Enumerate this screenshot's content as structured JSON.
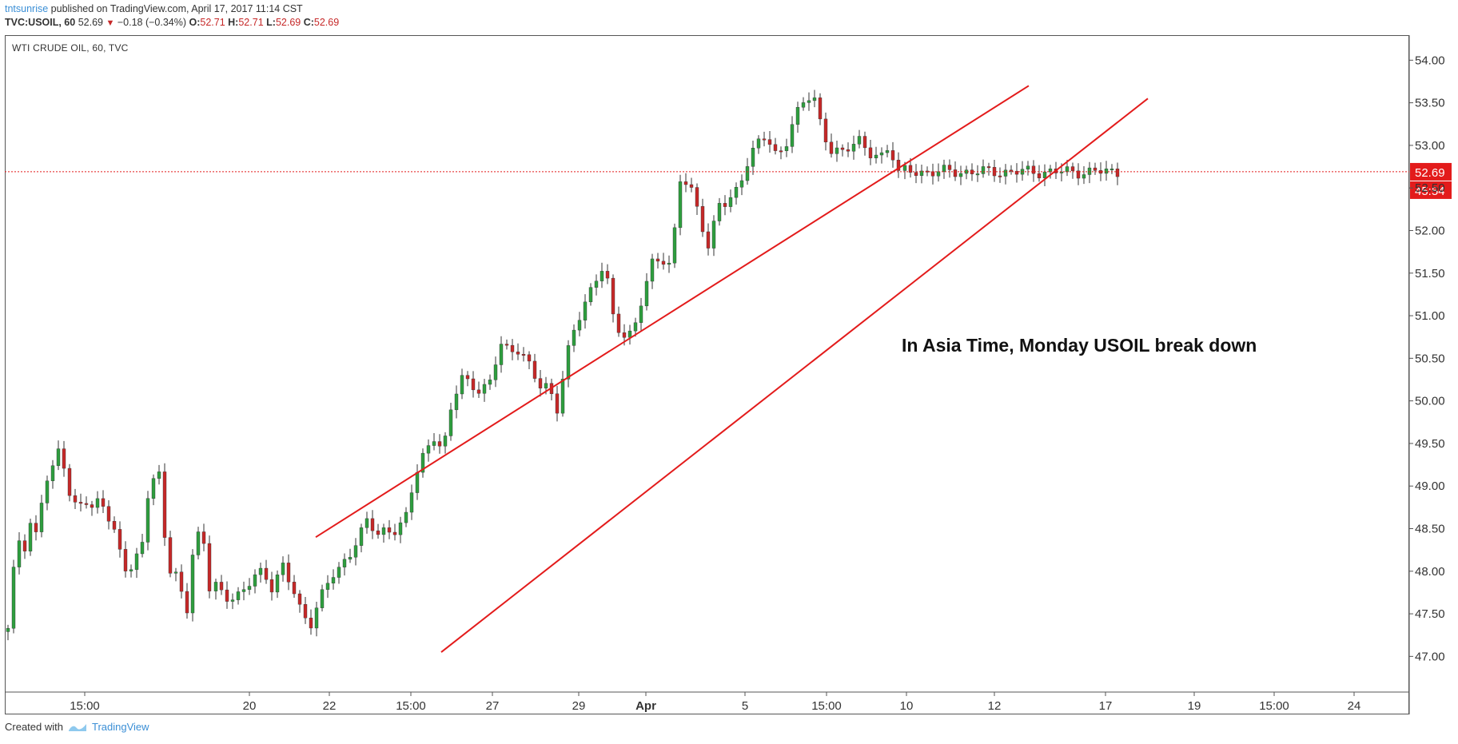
{
  "header": {
    "user": "tntsunrise",
    "published": " published on TradingView.com, April 17, 2017 11:14 CST",
    "symbol": "TVC:USOIL, 60",
    "last": "52.69",
    "arrow": "▼",
    "change": "−0.18 (−0.34%)",
    "o_label": "O:",
    "o_val": "52.71",
    "h_label": "H:",
    "h_val": "52.71",
    "l_label": "L:",
    "l_val": "52.69",
    "c_label": "C:",
    "c_val": "52.69"
  },
  "chart_title": "WTI CRUDE OIL, 60, TVC",
  "footer": {
    "created": "Created with",
    "brand": "TradingView"
  },
  "chart_data": {
    "type": "line",
    "title": "WTI CRUDE OIL, 60, TVC",
    "ylim": [
      46.6,
      54.2
    ],
    "y_ticks": [
      "54.00",
      "53.50",
      "53.00",
      "52.50",
      "52.00",
      "51.50",
      "51.00",
      "50.50",
      "50.00",
      "49.50",
      "49.00",
      "48.50",
      "48.00",
      "47.50",
      "47.00"
    ],
    "x_ticks": [
      "15:00",
      "20",
      "22",
      "15:00",
      "27",
      "29",
      "Apr",
      "5",
      "15:00",
      "10",
      "12",
      "17",
      "19",
      "15:00",
      "24"
    ],
    "series": [
      {
        "values": [
          47.3,
          48.0,
          48.4,
          48.3,
          48.6,
          48.4,
          48.9,
          49.1,
          49.2,
          49.5,
          49.2,
          48.8,
          48.75,
          48.8,
          48.8,
          48.65,
          48.95,
          48.7,
          48.6,
          48.3,
          48.1,
          47.9,
          48.2,
          48.1,
          48.9,
          49.0,
          49.3,
          48.5,
          48.0,
          48.0,
          47.8,
          47.5,
          48.2,
          48.4,
          48.3,
          47.8,
          47.7,
          47.7,
          47.8,
          47.9,
          48.0,
          47.8,
          48.1,
          47.8,
          47.5,
          47.4,
          47.7,
          47.9,
          48.0,
          48.2,
          48.4,
          48.6,
          48.4,
          48.5,
          48.5,
          48.6,
          49.1,
          49.4,
          49.6,
          49.4,
          50.0,
          50.3,
          50.2,
          50.1,
          50.2,
          50.7,
          50.6,
          50.6,
          50.4,
          50.2,
          50.2,
          49.9,
          50.5,
          50.9,
          51.2,
          51.4,
          51.6,
          50.9,
          50.8,
          50.8,
          51.2,
          51.6,
          51.7,
          51.6,
          52.6,
          52.5,
          52.2,
          51.8,
          52.3,
          52.3,
          52.5,
          52.8,
          53.0,
          53.1,
          52.9,
          53.0,
          53.3,
          53.5,
          53.6,
          53.2,
          52.9,
          52.9,
          53.0,
          53.1,
          52.9,
          52.8,
          53.0,
          52.69
        ]
      },
      {
        "name": "Upper trend line",
        "x": [
          "Mar 24 14:00",
          "Apr 13 04:00"
        ],
        "values": [
          48.4,
          53.7
        ]
      },
      {
        "name": "Lower trend line",
        "x": [
          "Mar 27 16:00",
          "Apr 18 08:00"
        ],
        "values": [
          47.05,
          53.55
        ]
      }
    ],
    "price_line": 52.69,
    "price_label": "52.69",
    "countdown_label": "45:54",
    "annotation": "In Asia Time, Monday USOIL break down",
    "colors": {
      "up": "#2e9e3e",
      "down": "#c62828",
      "trend": "#e31b1b",
      "price_line": "#e31b1b"
    }
  }
}
